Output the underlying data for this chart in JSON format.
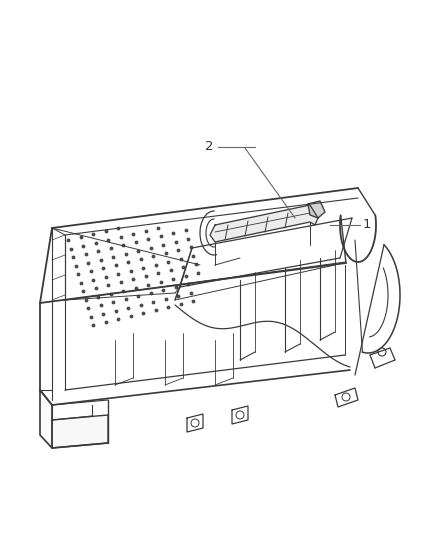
{
  "bg_color": "#ffffff",
  "line_color": "#3a3a3a",
  "label_color": "#333333",
  "fig_width": 4.38,
  "fig_height": 5.33,
  "dpi": 100,
  "label1": "1",
  "label2": "2"
}
